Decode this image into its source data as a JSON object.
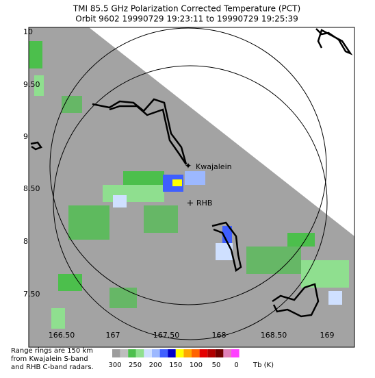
{
  "header": {
    "title": "TMI 85.5 GHz Polarization Corrected Temperature (PCT)",
    "subtitle": "Orbit 9602 19990729 19:23:11 to 19990729 19:25:39"
  },
  "map": {
    "lon_labels": [
      "166.50",
      "167",
      "167.50",
      "168",
      "168.50",
      "169"
    ],
    "lat_labels": [
      "10",
      "9.50",
      "9",
      "8.50",
      "8",
      "7.50"
    ],
    "places": [
      {
        "label": "Kwajalein"
      },
      {
        "label": "RHB"
      }
    ]
  },
  "footnote": [
    "Range rings are 150 km",
    "from Kwajalein S-band",
    "and RHB C-band radars."
  ],
  "colorbar": {
    "colors": [
      "#9c9c9c",
      "#bdbdbd",
      "#4cbf4c",
      "#8fdf8f",
      "#cfe0ff",
      "#9cb8ff",
      "#3f5fff",
      "#0000c8",
      "#ffff00",
      "#ffa800",
      "#ff6400",
      "#e40000",
      "#b00000",
      "#700000",
      "#e080b8",
      "#ff40ff"
    ],
    "labels": [
      "300",
      "250",
      "200",
      "150",
      "100",
      "50",
      "0"
    ],
    "unit": "Tb (K)"
  }
}
